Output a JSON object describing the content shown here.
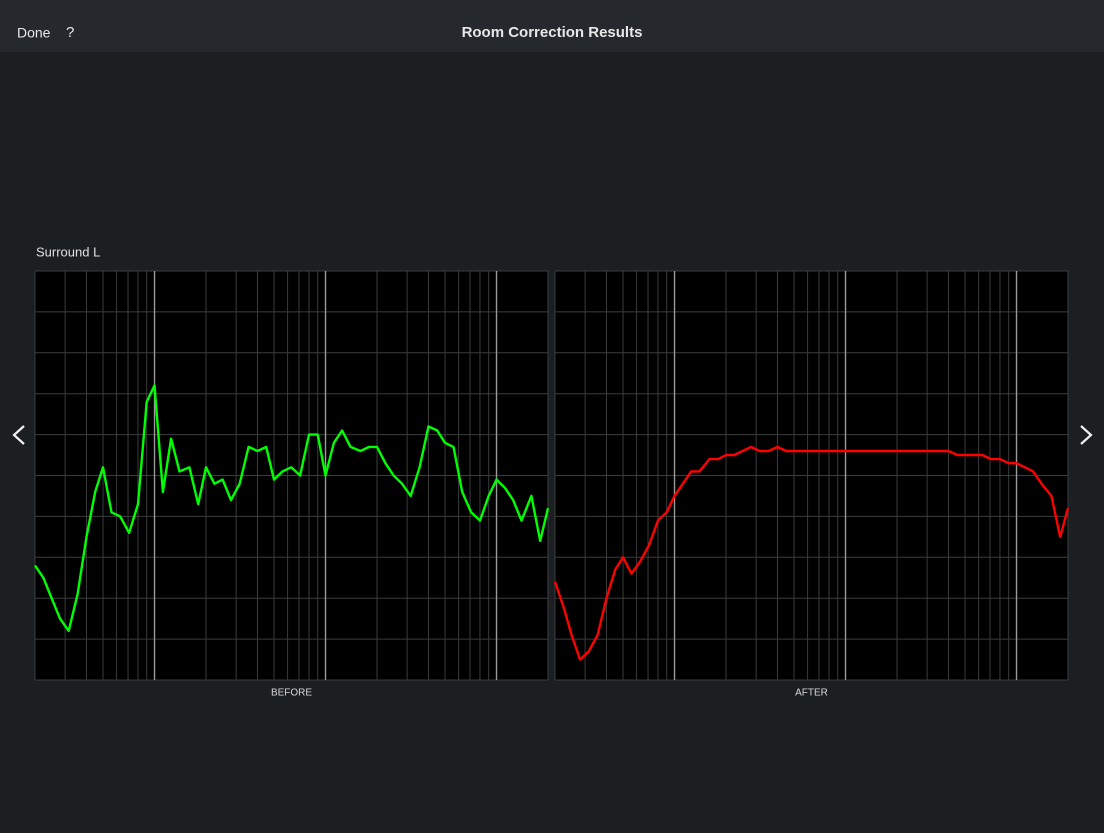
{
  "header": {
    "done": "Done",
    "help": "?",
    "title": "Room Correction Results"
  },
  "channel": "Surround L",
  "chart_data": [
    {
      "type": "line",
      "xlabel": "BEFORE",
      "color": "#00ff00",
      "log_x": true,
      "grid": true,
      "xlim": [
        20,
        20000
      ],
      "ylim": [
        0,
        10
      ],
      "xticks": [
        20,
        30,
        40,
        50,
        60,
        70,
        80,
        90,
        100,
        200,
        300,
        400,
        500,
        600,
        700,
        800,
        900,
        1000,
        2000,
        3000,
        4000,
        5000,
        6000,
        7000,
        8000,
        9000,
        10000,
        20000
      ],
      "yticks": [
        0,
        1,
        2,
        3,
        4,
        5,
        6,
        7,
        8,
        9,
        10
      ],
      "x": [
        20,
        22.4,
        25,
        28,
        31.5,
        35.5,
        40,
        45,
        50,
        56,
        63,
        71,
        80,
        90,
        100,
        112,
        125,
        140,
        160,
        180,
        200,
        224,
        250,
        280,
        315,
        355,
        400,
        450,
        500,
        560,
        630,
        710,
        800,
        900,
        1000,
        1120,
        1250,
        1400,
        1600,
        1800,
        2000,
        2240,
        2500,
        2800,
        3150,
        3550,
        4000,
        4500,
        5000,
        5600,
        6300,
        7100,
        8000,
        9000,
        10000,
        11200,
        12500,
        14000,
        16000,
        18000,
        20000
      ],
      "values": [
        2.8,
        2.5,
        2.0,
        1.5,
        1.2,
        2.1,
        3.5,
        4.6,
        5.2,
        4.1,
        4.0,
        3.6,
        4.3,
        6.8,
        7.2,
        4.6,
        5.9,
        5.1,
        5.2,
        4.3,
        5.2,
        4.8,
        4.9,
        4.4,
        4.8,
        5.7,
        5.6,
        5.7,
        4.9,
        5.1,
        5.2,
        5.0,
        6.0,
        6.0,
        5.0,
        5.8,
        6.1,
        5.7,
        5.6,
        5.7,
        5.7,
        5.3,
        5.0,
        4.8,
        4.5,
        5.2,
        6.2,
        6.1,
        5.8,
        5.7,
        4.6,
        4.1,
        3.9,
        4.5,
        4.9,
        4.7,
        4.4,
        3.9,
        4.5,
        3.4,
        4.2
      ]
    },
    {
      "type": "line",
      "xlabel": "AFTER",
      "color": "#ff0000",
      "log_x": true,
      "grid": true,
      "xlim": [
        20,
        20000
      ],
      "ylim": [
        0,
        10
      ],
      "xticks": [
        20,
        30,
        40,
        50,
        60,
        70,
        80,
        90,
        100,
        200,
        300,
        400,
        500,
        600,
        700,
        800,
        900,
        1000,
        2000,
        3000,
        4000,
        5000,
        6000,
        7000,
        8000,
        9000,
        10000,
        20000
      ],
      "yticks": [
        0,
        1,
        2,
        3,
        4,
        5,
        6,
        7,
        8,
        9,
        10
      ],
      "x": [
        20,
        22.4,
        25,
        28,
        31.5,
        35.5,
        40,
        45,
        50,
        56,
        63,
        71,
        80,
        90,
        100,
        112,
        125,
        140,
        160,
        180,
        200,
        224,
        250,
        280,
        315,
        355,
        400,
        450,
        500,
        560,
        630,
        710,
        800,
        900,
        1000,
        1120,
        1250,
        1400,
        1600,
        1800,
        2000,
        2240,
        2500,
        2800,
        3150,
        3550,
        4000,
        4500,
        5000,
        5600,
        6300,
        7100,
        8000,
        9000,
        10000,
        11200,
        12500,
        14000,
        16000,
        18000,
        20000
      ],
      "values": [
        2.4,
        1.8,
        1.1,
        0.5,
        0.7,
        1.1,
        2.0,
        2.7,
        3.0,
        2.6,
        2.9,
        3.3,
        3.9,
        4.1,
        4.5,
        4.8,
        5.1,
        5.1,
        5.4,
        5.4,
        5.5,
        5.5,
        5.6,
        5.7,
        5.6,
        5.6,
        5.7,
        5.6,
        5.6,
        5.6,
        5.6,
        5.6,
        5.6,
        5.6,
        5.6,
        5.6,
        5.6,
        5.6,
        5.6,
        5.6,
        5.6,
        5.6,
        5.6,
        5.6,
        5.6,
        5.6,
        5.6,
        5.5,
        5.5,
        5.5,
        5.5,
        5.4,
        5.4,
        5.3,
        5.3,
        5.2,
        5.1,
        4.8,
        4.5,
        3.5,
        4.2
      ]
    }
  ]
}
